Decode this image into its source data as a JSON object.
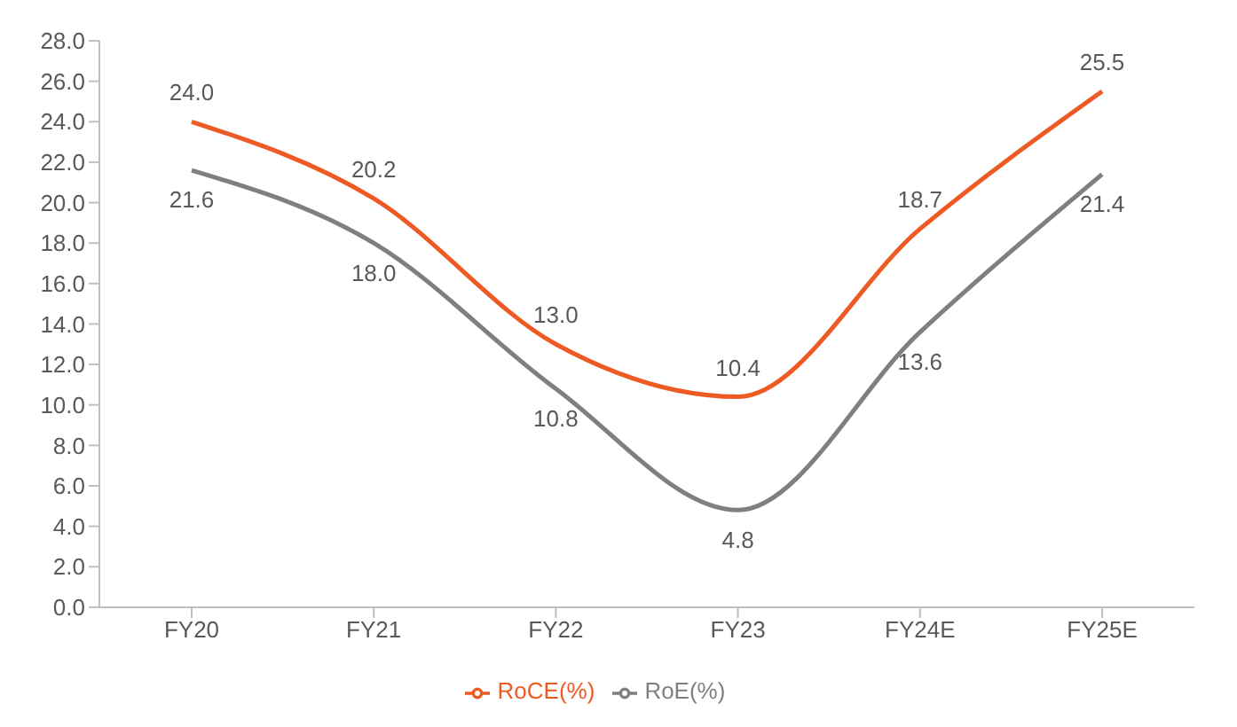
{
  "chart_data": {
    "type": "line",
    "categories": [
      "FY20",
      "FY21",
      "FY22",
      "FY23",
      "FY24E",
      "FY25E"
    ],
    "series": [
      {
        "name": "RoE(%)",
        "color": "#7f7f7f",
        "values": [
          21.6,
          18.0,
          10.8,
          4.8,
          13.6,
          21.4
        ],
        "value_labels": [
          "21.6",
          "18.0",
          "10.8",
          "4.8",
          "13.6",
          "21.4"
        ]
      },
      {
        "name": "RoCE(%)",
        "color": "#ee5a24",
        "values": [
          24.0,
          20.2,
          13.0,
          10.4,
          18.7,
          25.5
        ],
        "value_labels": [
          "24.0",
          "20.2",
          "13.0",
          "10.4",
          "18.7",
          "25.5"
        ]
      }
    ],
    "ylim": [
      0,
      28
    ],
    "yticks": [
      {
        "value": 0,
        "label": "0.0"
      },
      {
        "value": 2,
        "label": "2.0"
      },
      {
        "value": 4,
        "label": "4.0"
      },
      {
        "value": 6,
        "label": "6.0"
      },
      {
        "value": 8,
        "label": "8.0"
      },
      {
        "value": 10,
        "label": "10.0"
      },
      {
        "value": 12,
        "label": "12.0"
      },
      {
        "value": 14,
        "label": "14.0"
      },
      {
        "value": 16,
        "label": "16.0"
      },
      {
        "value": 18,
        "label": "18.0"
      },
      {
        "value": 20,
        "label": "20.0"
      },
      {
        "value": 22,
        "label": "22.0"
      },
      {
        "value": 24,
        "label": "24.0"
      },
      {
        "value": 26,
        "label": "26.0"
      },
      {
        "value": 28,
        "label": "28.0"
      }
    ],
    "grid": false,
    "legend": "bottom",
    "marker": "none",
    "line_style": "solid"
  }
}
